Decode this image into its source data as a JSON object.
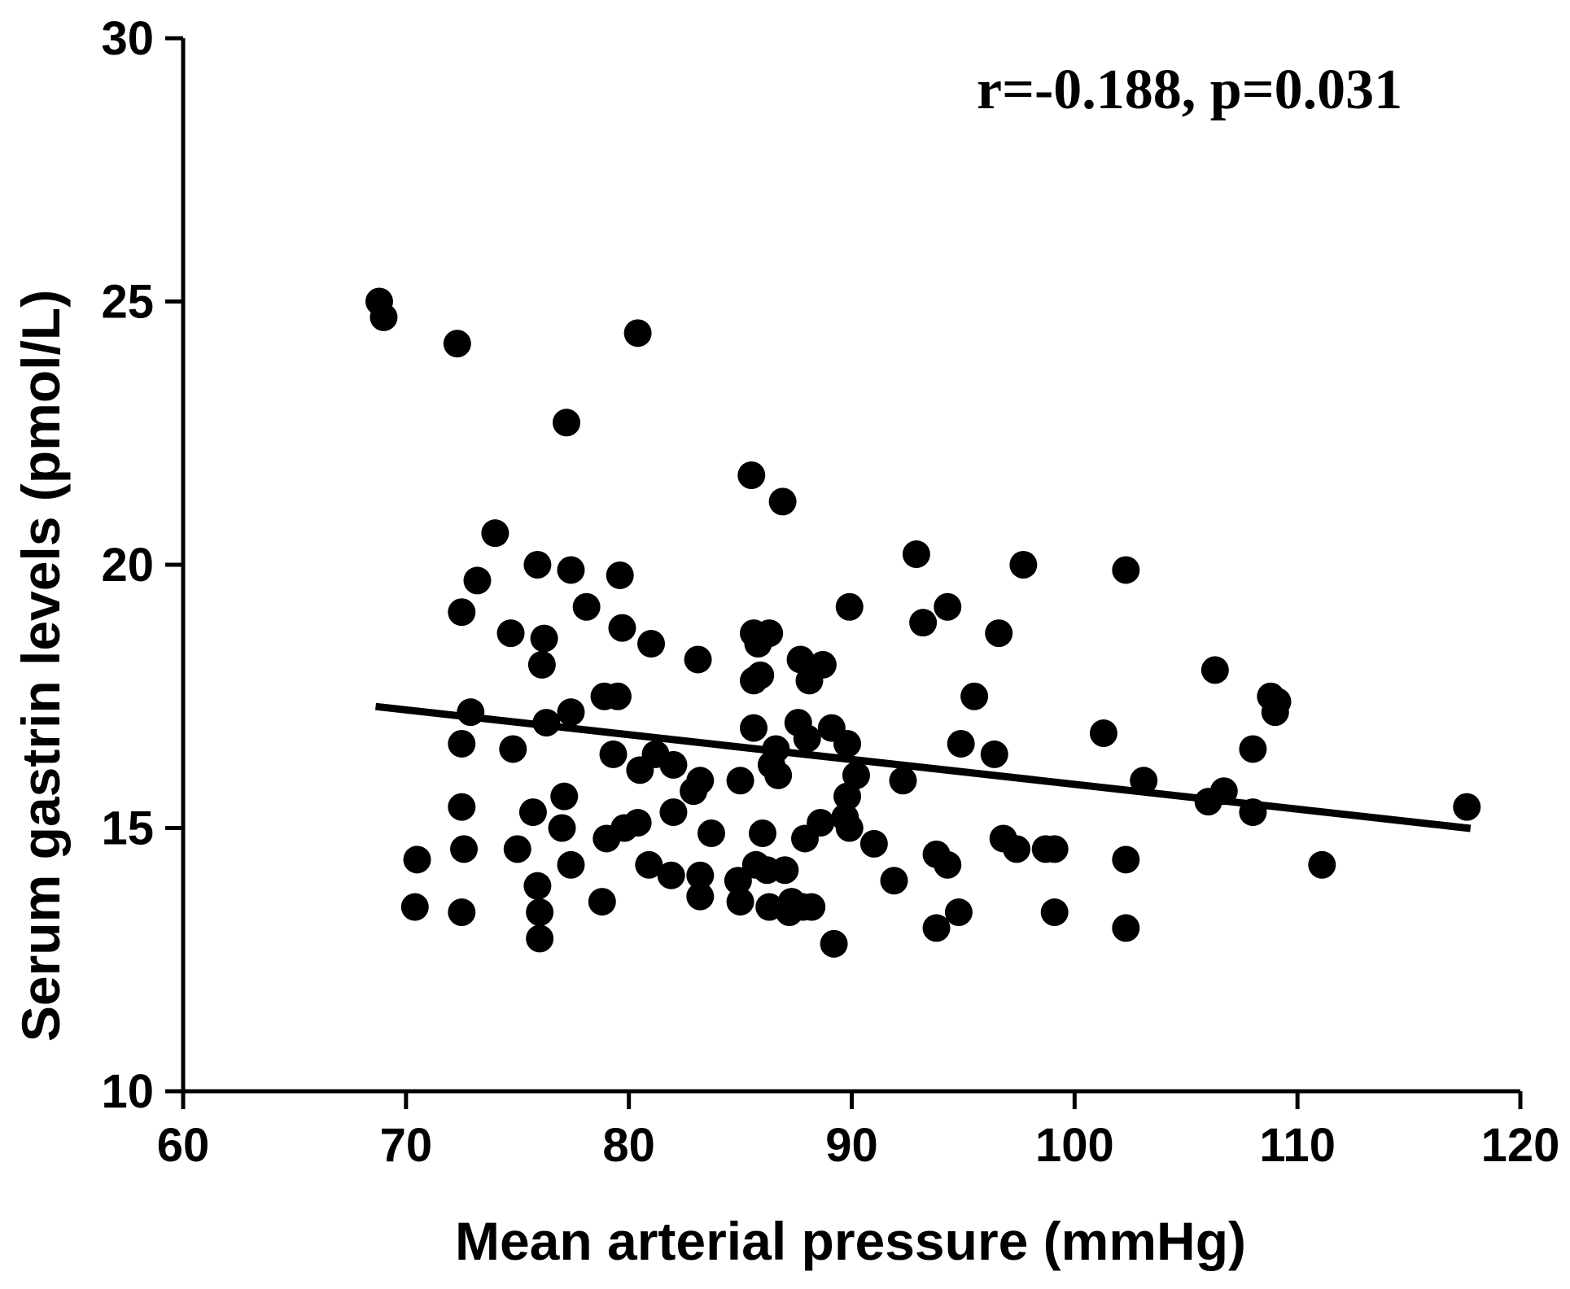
{
  "chart_data": {
    "type": "scatter",
    "title": "",
    "xlabel": "Mean arterial pressure (mmHg)",
    "ylabel": "Serum gastrin levels (pmol/L)",
    "xlim": [
      60,
      120
    ],
    "ylim": [
      10,
      30
    ],
    "xticks": [
      60,
      70,
      80,
      90,
      100,
      110,
      120
    ],
    "yticks": [
      10,
      15,
      20,
      25,
      30
    ],
    "annotation": "r=-0.188, p=0.031",
    "marker_color": "#000000",
    "regression_line": {
      "x": [
        68.8,
        117.6
      ],
      "y": [
        17.3,
        15.0
      ]
    },
    "points": [
      [
        68.8,
        25.0
      ],
      [
        69.0,
        24.7
      ],
      [
        72.3,
        24.2
      ],
      [
        80.4,
        24.4
      ],
      [
        77.2,
        22.7
      ],
      [
        85.5,
        21.7
      ],
      [
        86.9,
        21.2
      ],
      [
        74.0,
        20.6
      ],
      [
        75.9,
        20.0
      ],
      [
        77.4,
        19.9
      ],
      [
        79.6,
        19.8
      ],
      [
        73.2,
        19.7
      ],
      [
        72.5,
        19.1
      ],
      [
        78.1,
        19.2
      ],
      [
        89.9,
        19.2
      ],
      [
        92.9,
        20.2
      ],
      [
        97.7,
        20.0
      ],
      [
        102.3,
        19.9
      ],
      [
        94.3,
        19.2
      ],
      [
        93.2,
        18.9
      ],
      [
        74.7,
        18.7
      ],
      [
        76.2,
        18.6
      ],
      [
        79.7,
        18.8
      ],
      [
        81.0,
        18.5
      ],
      [
        85.6,
        18.7
      ],
      [
        86.3,
        18.7
      ],
      [
        85.8,
        18.5
      ],
      [
        96.6,
        18.7
      ],
      [
        76.1,
        18.1
      ],
      [
        83.1,
        18.2
      ],
      [
        87.7,
        18.2
      ],
      [
        88.7,
        18.1
      ],
      [
        85.6,
        17.8
      ],
      [
        85.9,
        17.9
      ],
      [
        88.1,
        17.8
      ],
      [
        106.3,
        18.0
      ],
      [
        78.9,
        17.5
      ],
      [
        79.5,
        17.5
      ],
      [
        72.9,
        17.2
      ],
      [
        77.4,
        17.2
      ],
      [
        95.5,
        17.5
      ],
      [
        108.8,
        17.5
      ],
      [
        109.1,
        17.4
      ],
      [
        109.0,
        17.2
      ],
      [
        76.3,
        17.0
      ],
      [
        85.6,
        16.9
      ],
      [
        87.6,
        17.0
      ],
      [
        89.1,
        16.9
      ],
      [
        101.3,
        16.8
      ],
      [
        72.5,
        16.6
      ],
      [
        74.8,
        16.5
      ],
      [
        86.6,
        16.5
      ],
      [
        88.0,
        16.7
      ],
      [
        89.8,
        16.6
      ],
      [
        94.9,
        16.6
      ],
      [
        96.4,
        16.4
      ],
      [
        108.0,
        16.5
      ],
      [
        79.3,
        16.4
      ],
      [
        81.2,
        16.4
      ],
      [
        80.5,
        16.1
      ],
      [
        82.0,
        16.2
      ],
      [
        86.4,
        16.2
      ],
      [
        86.7,
        16.0
      ],
      [
        90.2,
        16.0
      ],
      [
        85.0,
        15.9
      ],
      [
        83.2,
        15.9
      ],
      [
        82.9,
        15.7
      ],
      [
        92.3,
        15.9
      ],
      [
        103.1,
        15.9
      ],
      [
        106.7,
        15.7
      ],
      [
        106.0,
        15.5
      ],
      [
        108.0,
        15.3
      ],
      [
        117.6,
        15.4
      ],
      [
        77.1,
        15.6
      ],
      [
        89.8,
        15.6
      ],
      [
        72.5,
        15.4
      ],
      [
        75.7,
        15.3
      ],
      [
        82.0,
        15.3
      ],
      [
        80.4,
        15.1
      ],
      [
        79.8,
        15.0
      ],
      [
        88.6,
        15.1
      ],
      [
        89.9,
        15.0
      ],
      [
        89.7,
        15.2
      ],
      [
        77.0,
        15.0
      ],
      [
        79.0,
        14.8
      ],
      [
        83.7,
        14.9
      ],
      [
        86.0,
        14.9
      ],
      [
        87.9,
        14.8
      ],
      [
        91.0,
        14.7
      ],
      [
        96.8,
        14.8
      ],
      [
        97.4,
        14.6
      ],
      [
        98.7,
        14.6
      ],
      [
        99.1,
        14.6
      ],
      [
        72.6,
        14.6
      ],
      [
        75.0,
        14.6
      ],
      [
        93.8,
        14.5
      ],
      [
        70.5,
        14.4
      ],
      [
        77.4,
        14.3
      ],
      [
        80.9,
        14.3
      ],
      [
        85.7,
        14.3
      ],
      [
        86.2,
        14.2
      ],
      [
        87.0,
        14.2
      ],
      [
        94.3,
        14.3
      ],
      [
        102.3,
        14.4
      ],
      [
        111.1,
        14.3
      ],
      [
        81.9,
        14.1
      ],
      [
        83.2,
        14.1
      ],
      [
        84.9,
        14.0
      ],
      [
        91.9,
        14.0
      ],
      [
        75.9,
        13.9
      ],
      [
        83.2,
        13.7
      ],
      [
        78.8,
        13.6
      ],
      [
        85.0,
        13.6
      ],
      [
        86.3,
        13.5
      ],
      [
        87.3,
        13.6
      ],
      [
        87.8,
        13.5
      ],
      [
        88.2,
        13.5
      ],
      [
        87.2,
        13.4
      ],
      [
        70.4,
        13.5
      ],
      [
        72.5,
        13.4
      ],
      [
        76.0,
        13.4
      ],
      [
        94.8,
        13.4
      ],
      [
        99.1,
        13.4
      ],
      [
        76.0,
        12.9
      ],
      [
        89.2,
        12.8
      ],
      [
        93.8,
        13.1
      ],
      [
        102.3,
        13.1
      ]
    ]
  }
}
